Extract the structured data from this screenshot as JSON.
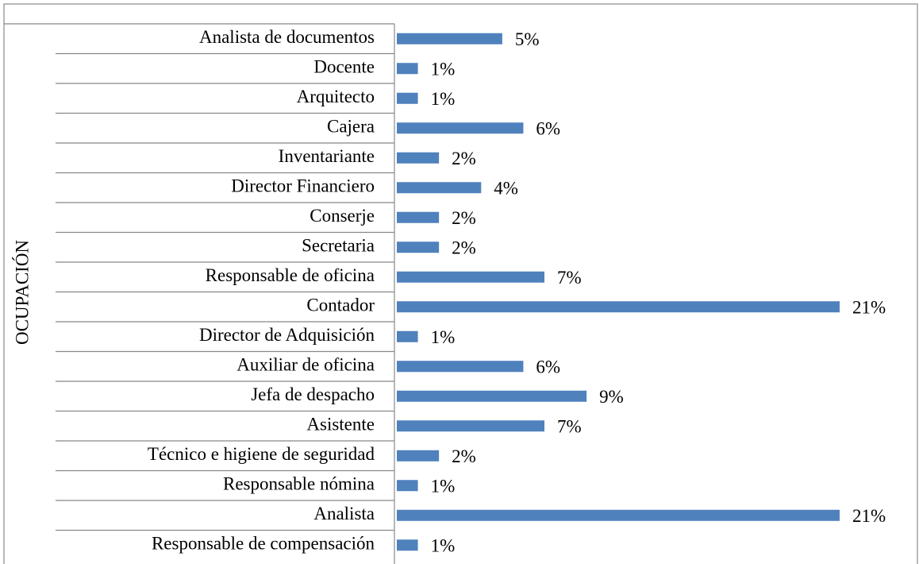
{
  "chart_data": {
    "type": "bar",
    "orientation": "horizontal",
    "y_label": "OCUPACIÓN",
    "color": "#4f81bd",
    "categories": [
      "Analista de documentos",
      "Docente",
      "Arquitecto",
      "Cajera",
      "Inventariante",
      "Director Financiero",
      "Conserje",
      "Secretaria",
      "Responsable de oficina",
      "Contador",
      "Director de Adquisición",
      "Auxiliar de oficina",
      "Jefa de despacho",
      "Asistente",
      "Técnico e higiene de seguridad",
      "Responsable nómina",
      "Analista",
      "Responsable de compensación"
    ],
    "values": [
      5,
      1,
      1,
      6,
      2,
      4,
      2,
      2,
      7,
      21,
      1,
      6,
      9,
      7,
      2,
      1,
      21,
      1
    ],
    "value_labels": [
      "5%",
      "1%",
      "1%",
      "6%",
      "2%",
      "4%",
      "2%",
      "2%",
      "7%",
      "21%",
      "1%",
      "6%",
      "9%",
      "7%",
      "2%",
      "1%",
      "21%",
      "1%"
    ]
  }
}
